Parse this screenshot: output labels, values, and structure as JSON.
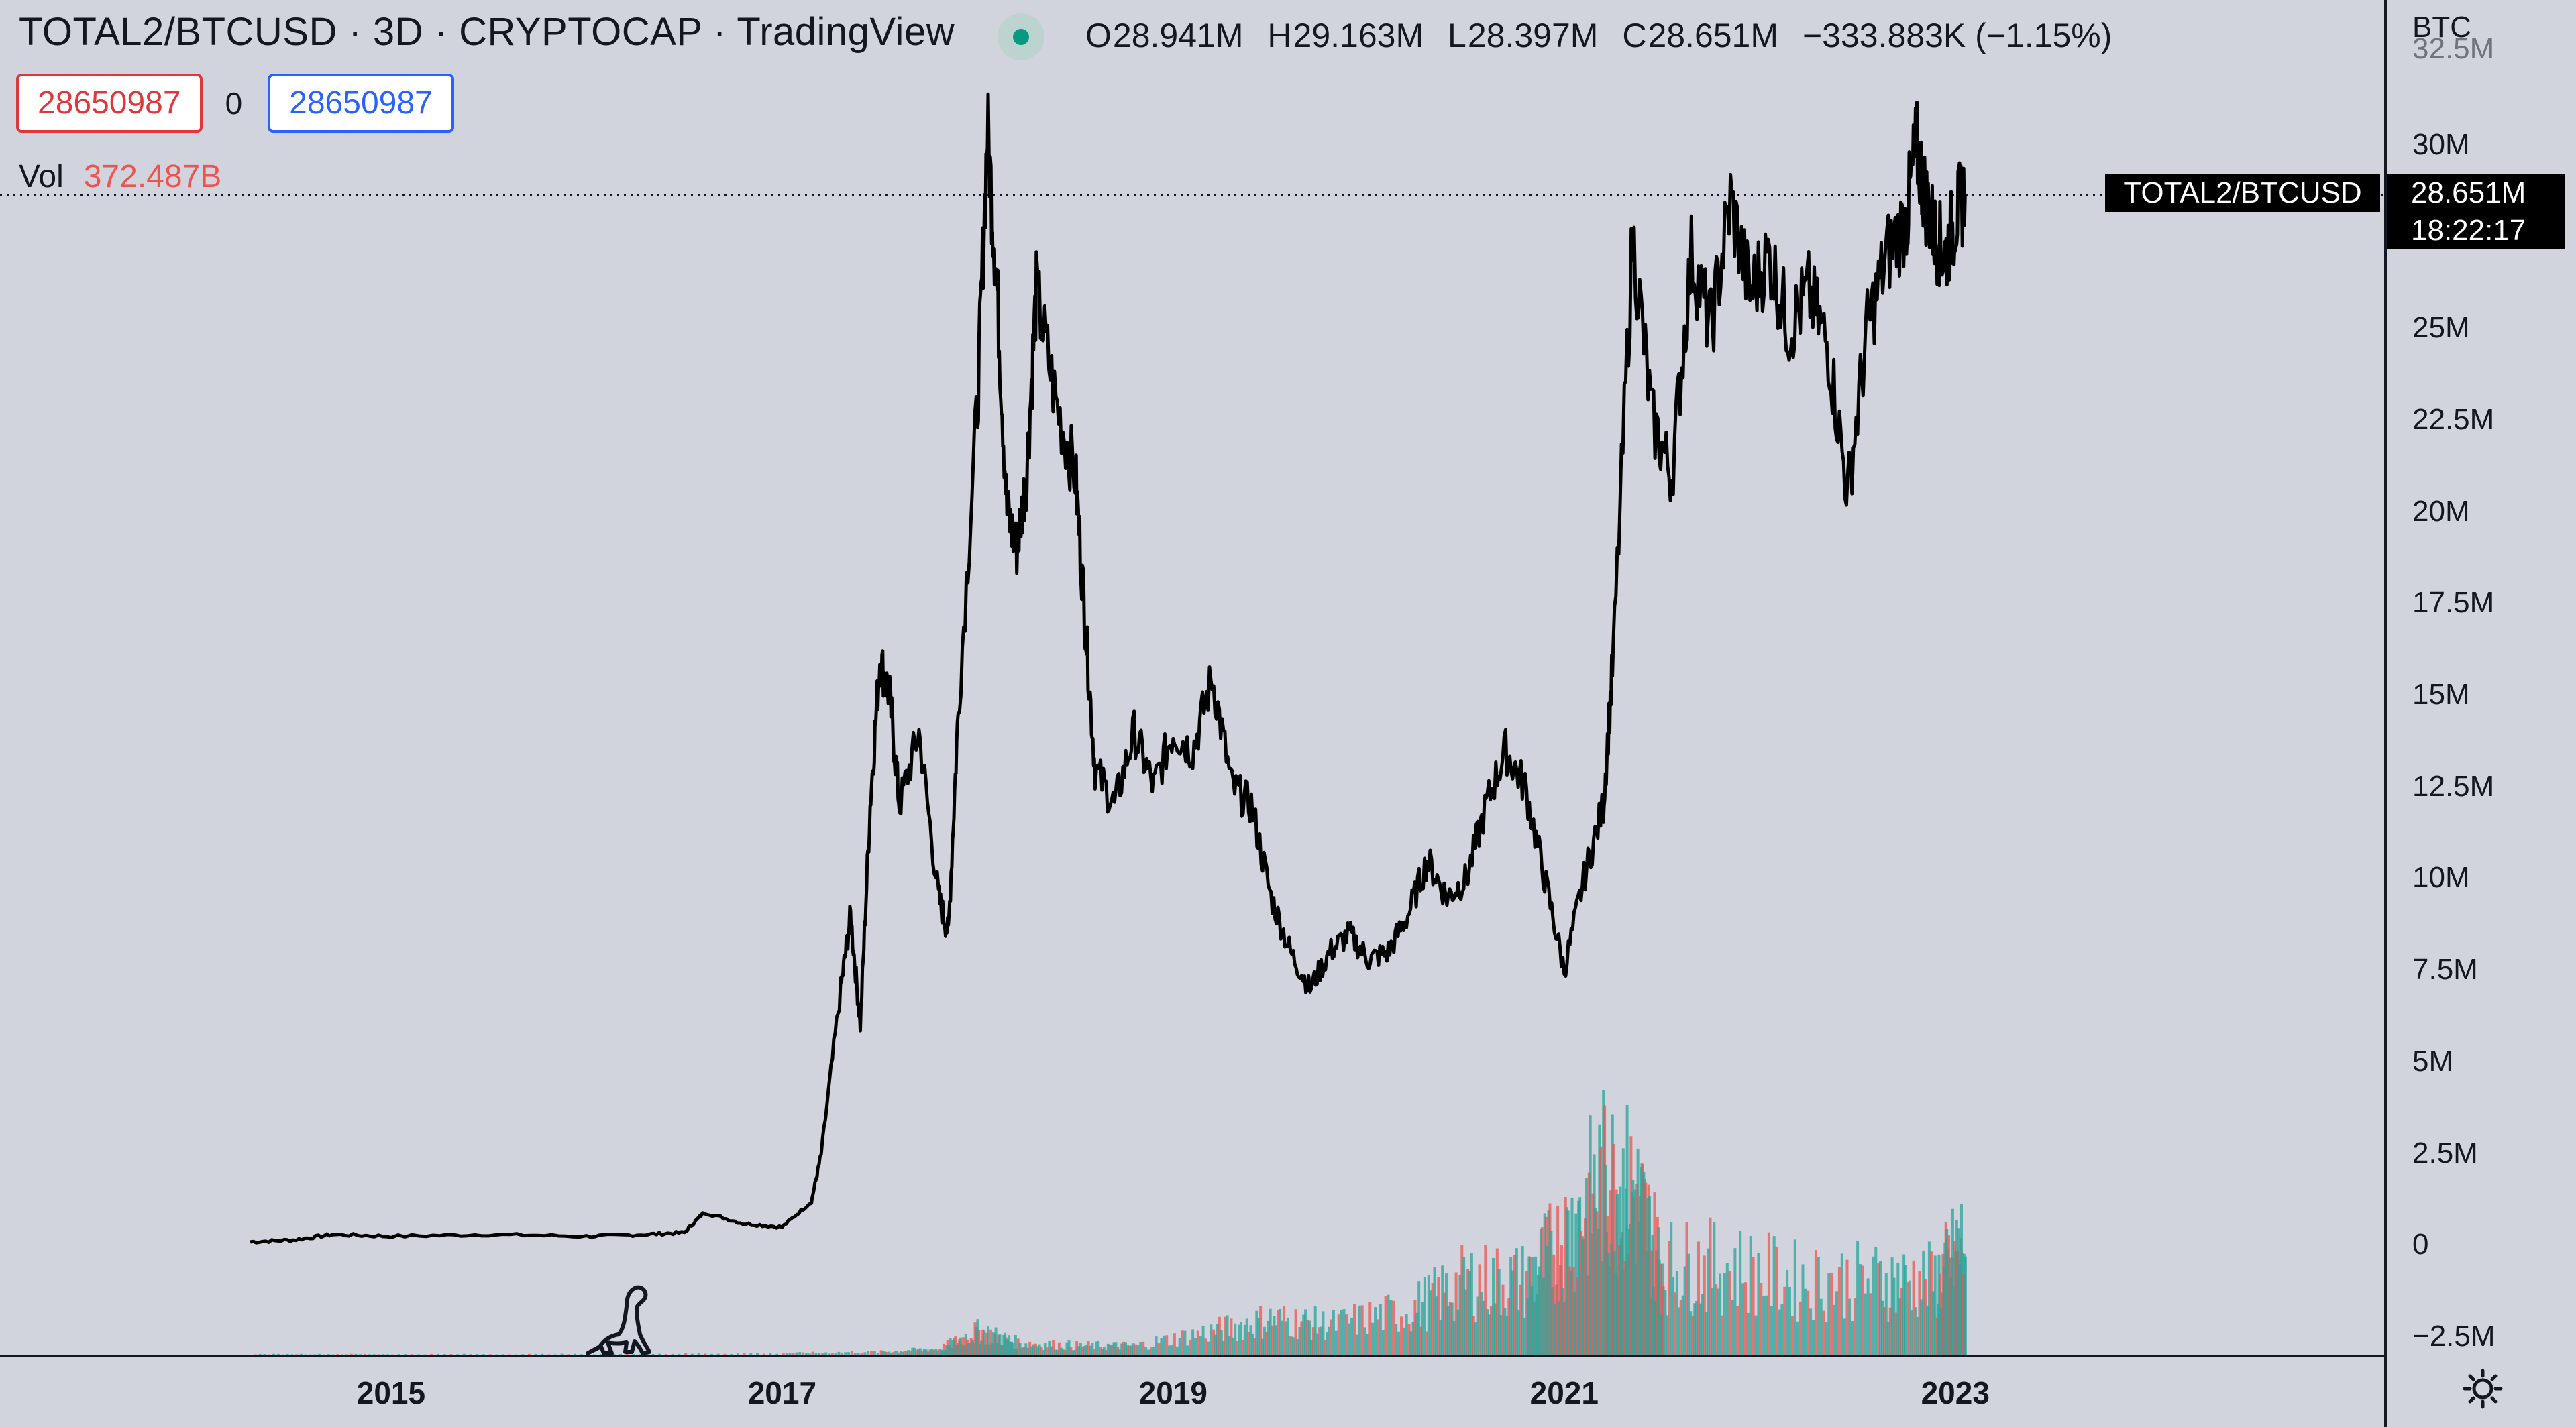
{
  "header": {
    "title": "TOTAL2/BTCUSD · 3D · CRYPTOCAP · TradingView",
    "ohlc": [
      {
        "k": "O",
        "v": "28.941M"
      },
      {
        "k": "H",
        "v": "29.163M"
      },
      {
        "k": "L",
        "v": "28.397M"
      },
      {
        "k": "C",
        "v": "28.651M"
      }
    ],
    "change": "−333.883K (−1.15%)"
  },
  "inputs": {
    "left": "28650987",
    "middle": "0",
    "right": "28650987"
  },
  "volume": {
    "label": "Vol",
    "value": "372.487B"
  },
  "axis": {
    "currency": "BTC",
    "y_ticks": [
      "32.5M",
      "30M",
      "25M",
      "22.5M",
      "20M",
      "17.5M",
      "15M",
      "12.5M",
      "10M",
      "7.5M",
      "5M",
      "2.5M",
      "0",
      "−2.5M"
    ],
    "x_ticks": [
      "2015",
      "2017",
      "2019",
      "2021",
      "2023"
    ]
  },
  "price_marker": {
    "symbol": "TOTAL2/BTCUSD",
    "price": "28.651M",
    "countdown": "18:22:17"
  },
  "icons": {
    "logo": "tradingview-dino-logo-icon",
    "settings": "settings-gear-icon",
    "status": "market-open-dot-icon"
  },
  "colors": {
    "up": "#26a69a",
    "down": "#ef5350",
    "line": "#000000",
    "background": "#d1d4dc"
  },
  "chart_data": {
    "type": "line",
    "title": "TOTAL2/BTCUSD · 3D · CRYPTOCAP · TradingView",
    "ylabel": "BTC",
    "ylim": [
      -2.5,
      32.5
    ],
    "y_unit": "M",
    "xlim": [
      2013.0,
      2025.2
    ],
    "grid": false,
    "series": [
      {
        "name": "TOTAL2/BTCUSD",
        "points": [
          [
            2014.28,
            0.1
          ],
          [
            2014.5,
            0.15
          ],
          [
            2014.7,
            0.3
          ],
          [
            2015.0,
            0.25
          ],
          [
            2015.5,
            0.3
          ],
          [
            2016.0,
            0.25
          ],
          [
            2016.3,
            0.3
          ],
          [
            2016.5,
            0.35
          ],
          [
            2016.6,
            0.9
          ],
          [
            2016.8,
            0.6
          ],
          [
            2017.0,
            0.5
          ],
          [
            2017.15,
            1.2
          ],
          [
            2017.2,
            2.5
          ],
          [
            2017.3,
            7.0
          ],
          [
            2017.35,
            9.0
          ],
          [
            2017.4,
            6.0
          ],
          [
            2017.45,
            12.0
          ],
          [
            2017.5,
            16.0
          ],
          [
            2017.55,
            15.0
          ],
          [
            2017.6,
            12.0
          ],
          [
            2017.7,
            14.0
          ],
          [
            2017.8,
            9.5
          ],
          [
            2017.85,
            8.5
          ],
          [
            2017.9,
            14.5
          ],
          [
            2018.0,
            23.0
          ],
          [
            2018.05,
            30.5
          ],
          [
            2018.1,
            26.0
          ],
          [
            2018.15,
            20.0
          ],
          [
            2018.2,
            19.0
          ],
          [
            2018.25,
            21.0
          ],
          [
            2018.3,
            26.0
          ],
          [
            2018.4,
            23.0
          ],
          [
            2018.5,
            21.0
          ],
          [
            2018.55,
            17.0
          ],
          [
            2018.6,
            13.0
          ],
          [
            2018.7,
            12.0
          ],
          [
            2018.8,
            14.0
          ],
          [
            2018.9,
            12.5
          ],
          [
            2019.0,
            14.0
          ],
          [
            2019.1,
            13.5
          ],
          [
            2019.2,
            15.5
          ],
          [
            2019.3,
            12.5
          ],
          [
            2019.4,
            12.0
          ],
          [
            2019.5,
            9.5
          ],
          [
            2019.6,
            8.0
          ],
          [
            2019.7,
            7.0
          ],
          [
            2019.8,
            8.0
          ],
          [
            2019.9,
            8.5
          ],
          [
            2020.0,
            7.8
          ],
          [
            2020.1,
            8.0
          ],
          [
            2020.2,
            9.0
          ],
          [
            2020.3,
            10.5
          ],
          [
            2020.4,
            9.5
          ],
          [
            2020.5,
            10.0
          ],
          [
            2020.6,
            12.0
          ],
          [
            2020.7,
            13.5
          ],
          [
            2020.8,
            12.5
          ],
          [
            2020.9,
            10.0
          ],
          [
            2021.0,
            7.5
          ],
          [
            2021.1,
            10.0
          ],
          [
            2021.2,
            12.0
          ],
          [
            2021.25,
            16.0
          ],
          [
            2021.35,
            27.5
          ],
          [
            2021.45,
            22.5
          ],
          [
            2021.55,
            21.0
          ],
          [
            2021.65,
            27.0
          ],
          [
            2021.75,
            25.0
          ],
          [
            2021.85,
            28.5
          ],
          [
            2021.95,
            26.0
          ],
          [
            2022.05,
            27.0
          ],
          [
            2022.15,
            25.0
          ],
          [
            2022.25,
            26.0
          ],
          [
            2022.35,
            24.5
          ],
          [
            2022.45,
            20.5
          ],
          [
            2022.55,
            25.0
          ],
          [
            2022.65,
            27.0
          ],
          [
            2022.75,
            28.0
          ],
          [
            2022.8,
            30.0
          ],
          [
            2022.85,
            28.5
          ],
          [
            2022.9,
            27.5
          ],
          [
            2022.95,
            27.0
          ],
          [
            2023.0,
            28.0
          ],
          [
            2023.05,
            28.651
          ]
        ]
      },
      {
        "name": "Vol",
        "type": "bar",
        "points": [
          [
            2014.3,
            0.02
          ],
          [
            2015.0,
            0.02
          ],
          [
            2016.0,
            0.02
          ],
          [
            2017.0,
            0.05
          ],
          [
            2017.5,
            0.1
          ],
          [
            2017.8,
            0.2
          ],
          [
            2018.0,
            0.8
          ],
          [
            2018.2,
            0.4
          ],
          [
            2018.5,
            0.3
          ],
          [
            2018.8,
            0.3
          ],
          [
            2019.2,
            0.8
          ],
          [
            2019.5,
            1.2
          ],
          [
            2019.8,
            1.0
          ],
          [
            2020.2,
            1.5
          ],
          [
            2020.5,
            2.5
          ],
          [
            2020.8,
            2.5
          ],
          [
            2021.0,
            4.0
          ],
          [
            2021.2,
            6.0
          ],
          [
            2021.35,
            5.5
          ],
          [
            2021.5,
            3.0
          ],
          [
            2021.8,
            3.0
          ],
          [
            2022.2,
            2.5
          ],
          [
            2022.6,
            2.5
          ],
          [
            2022.9,
            2.5
          ],
          [
            2023.05,
            4.0
          ]
        ]
      }
    ]
  }
}
